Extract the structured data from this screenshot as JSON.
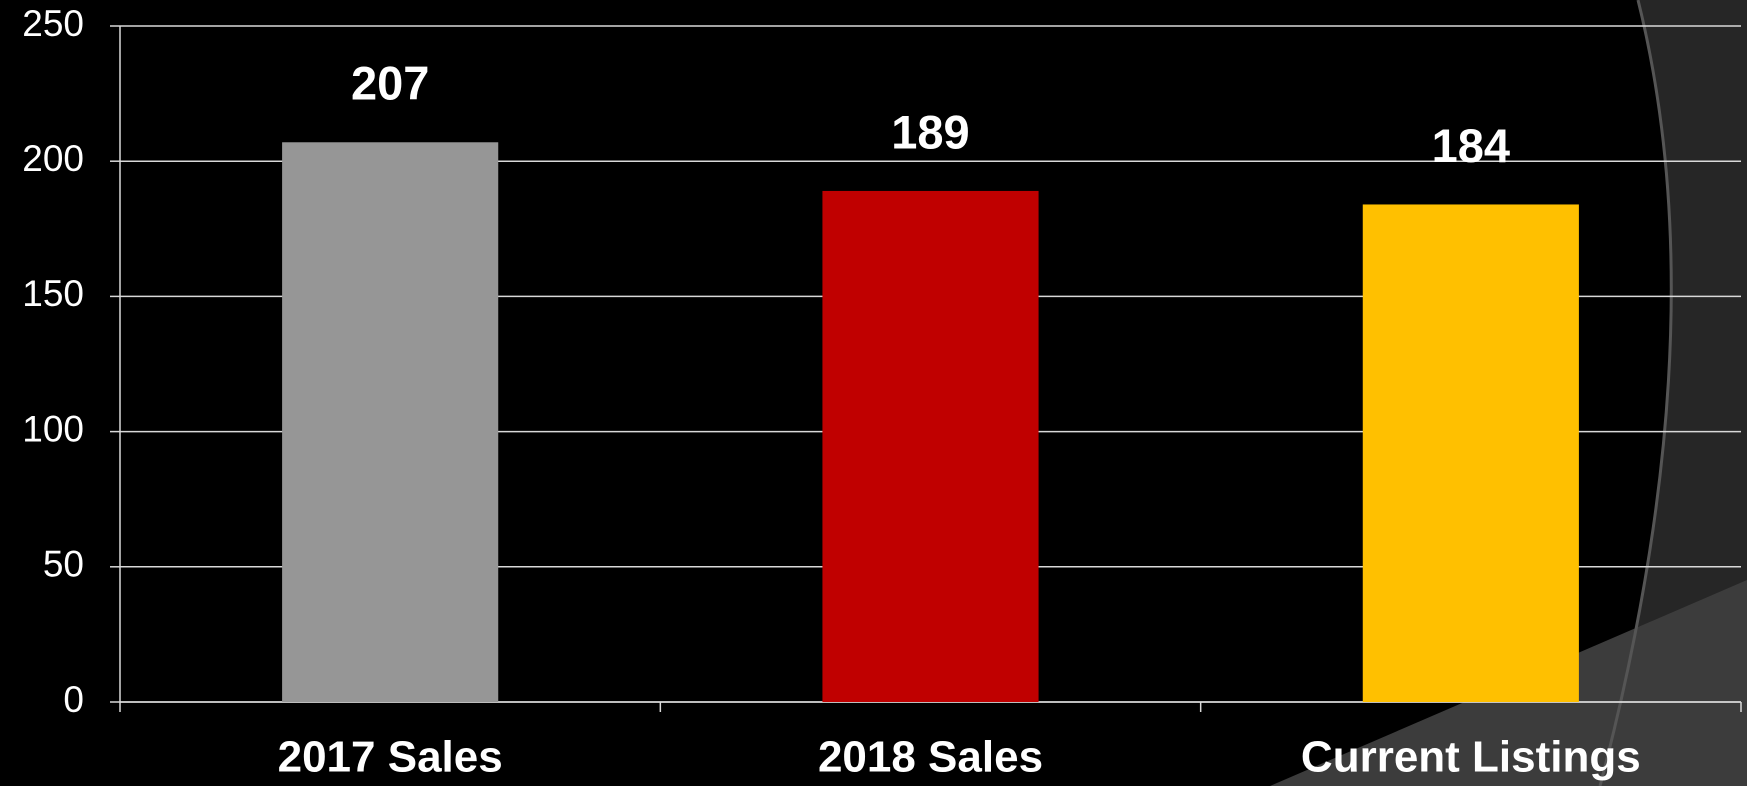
{
  "chart_data": {
    "type": "bar",
    "categories": [
      "2017 Sales",
      "2018 Sales",
      "Current Listings"
    ],
    "values": [
      207,
      189,
      184
    ],
    "colors": [
      "#969696",
      "#c00000",
      "#ffc000"
    ],
    "ylim": [
      0,
      250
    ],
    "yticks": [
      0,
      50,
      100,
      150,
      200,
      250
    ],
    "grid": true,
    "data_labels": true
  }
}
